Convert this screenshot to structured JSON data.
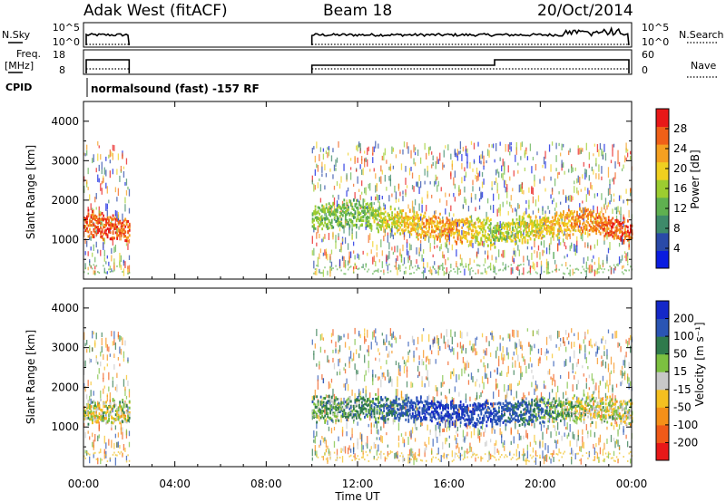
{
  "header": {
    "station": "Adak West (fitACF)",
    "beam": "Beam 18",
    "date": "20/Oct/2014"
  },
  "status_panels": {
    "nsky_label": "N.Sky",
    "nsearch_label": "N.Search",
    "freq_label_top": "Freq.",
    "freq_label_unit": "[MHz]",
    "nave_label": "Nave",
    "cpid_label": "CPID",
    "cpid_text": "normalsound (fast) -157 RF",
    "noise_ticks_left": [
      "10^5",
      "10^0"
    ],
    "noise_ticks_right": [
      "10^5",
      "10^0"
    ],
    "freq_ticks": [
      "18",
      "8"
    ],
    "nave_ticks": [
      "60",
      "0"
    ]
  },
  "power_panel": {
    "ylabel": "Slant Range [km]",
    "yticks": [
      "1000",
      "2000",
      "3000",
      "4000"
    ],
    "colorbar_label": "Power [dB]",
    "colorbar_ticks": [
      "4",
      "8",
      "12",
      "16",
      "20",
      "24",
      "28"
    ],
    "colorbar_colors": [
      "#0a1ce0",
      "#2a4aa8",
      "#3e8a6a",
      "#5fb050",
      "#9ccd30",
      "#f0d020",
      "#f5a020",
      "#f06018",
      "#e81818"
    ]
  },
  "velocity_panel": {
    "ylabel": "Slant Range [km]",
    "yticks": [
      "1000",
      "2000",
      "3000",
      "4000"
    ],
    "colorbar_label": "Velocity [m s⁻¹]",
    "colorbar_ticks": [
      "200",
      "100",
      "50",
      "15",
      "-15",
      "-50",
      "-100",
      "-200"
    ],
    "colorbar_colors": [
      "#1428c8",
      "#2a55b4",
      "#2f7a4c",
      "#7cc040",
      "#c8c8c8",
      "#f5c020",
      "#f59018",
      "#f05a18",
      "#e81818"
    ]
  },
  "x_axis": {
    "label": "Time UT",
    "ticks": [
      "00:00",
      "04:00",
      "08:00",
      "12:00",
      "16:00",
      "20:00",
      "00:00"
    ]
  },
  "chart_data": [
    {
      "type": "heatmap",
      "name": "power",
      "xlabel": "Time UT",
      "ylabel": "Slant Range [km]",
      "xlim": [
        0,
        24
      ],
      "ylim": [
        0,
        4500
      ],
      "colorbar_label": "Power [dB]",
      "colorbar_range": [
        0,
        32
      ],
      "data_coverage_hours": [
        [
          0.0,
          2.0
        ],
        [
          10.0,
          24.0
        ]
      ],
      "main_echo_band": [
        {
          "hour": 0.0,
          "range_km": 1450,
          "power_db": 26
        },
        {
          "hour": 1.0,
          "range_km": 1350,
          "power_db": 28
        },
        {
          "hour": 2.0,
          "range_km": 1250,
          "power_db": 26
        },
        {
          "hour": 12.0,
          "range_km": 1700,
          "power_db": 12
        },
        {
          "hour": 14.0,
          "range_km": 1450,
          "power_db": 20
        },
        {
          "hour": 16.0,
          "range_km": 1300,
          "power_db": 24
        },
        {
          "hour": 18.0,
          "range_km": 1200,
          "power_db": 16
        },
        {
          "hour": 22.0,
          "range_km": 1500,
          "power_db": 24
        },
        {
          "hour": 24.0,
          "range_km": 1200,
          "power_db": 28
        }
      ]
    },
    {
      "type": "heatmap",
      "name": "velocity",
      "xlabel": "Time UT",
      "ylabel": "Slant Range [km]",
      "xlim": [
        0,
        24
      ],
      "ylim": [
        0,
        4500
      ],
      "colorbar_label": "Velocity [m s⁻¹]",
      "colorbar_range": [
        -200,
        200
      ],
      "data_coverage_hours": [
        [
          0.0,
          2.0
        ],
        [
          10.0,
          24.0
        ]
      ],
      "main_echo_band": [
        {
          "hour": 0.0,
          "range_km": 1400,
          "velocity_ms": 0
        },
        {
          "hour": 2.0,
          "range_km": 1400,
          "velocity_ms": 0
        },
        {
          "hour": 12.5,
          "range_km": 1500,
          "velocity_ms": 60
        },
        {
          "hour": 15.0,
          "range_km": 1450,
          "velocity_ms": 200
        },
        {
          "hour": 17.0,
          "range_km": 1350,
          "velocity_ms": 200
        },
        {
          "hour": 22.0,
          "range_km": 1500,
          "velocity_ms": 0
        },
        {
          "hour": 24.0,
          "range_km": 1400,
          "velocity_ms": 0
        }
      ]
    }
  ]
}
